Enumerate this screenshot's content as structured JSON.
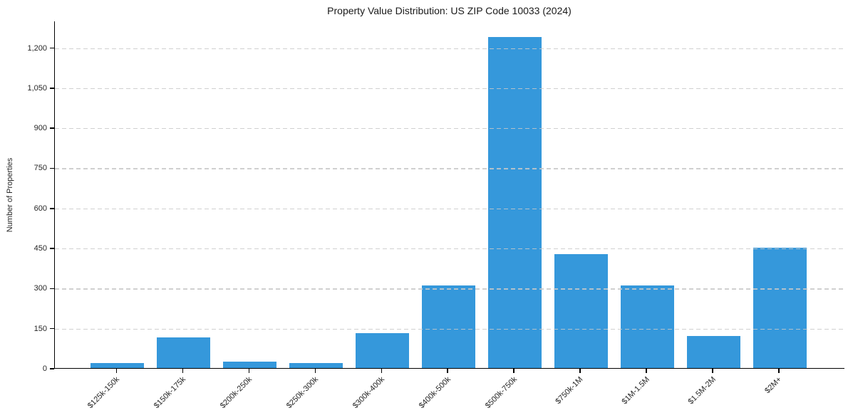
{
  "chart_data": {
    "type": "bar",
    "title": "Property Value Distribution: US ZIP Code 10033 (2024)",
    "xlabel": "",
    "ylabel": "Number of Properties",
    "categories": [
      "$125k-150k",
      "$150k-175k",
      "$200k-250k",
      "$250k-300k",
      "$300k-400k",
      "$400k-500k",
      "$500k-750k",
      "$750k-1M",
      "$1M-1.5M",
      "$1.5M-2M",
      "$2M+"
    ],
    "values": [
      20,
      115,
      25,
      20,
      130,
      310,
      1240,
      425,
      310,
      120,
      450
    ],
    "ylim": [
      0,
      1300
    ],
    "yticks": [
      0,
      150,
      300,
      450,
      600,
      750,
      900,
      1050,
      1200
    ],
    "ytick_labels": [
      "0",
      "150",
      "300",
      "450",
      "600",
      "750",
      "900",
      "1,050",
      "1,200"
    ],
    "x_tick_rotation_deg": 45,
    "legend": "none",
    "grid": true,
    "grid_axis": "y",
    "grid_style": "dashed",
    "colors": {
      "bar": "#3598db",
      "grid": "#c8c8c8",
      "axis": "#000000",
      "text": "#262626",
      "background": "#ffffff"
    }
  }
}
